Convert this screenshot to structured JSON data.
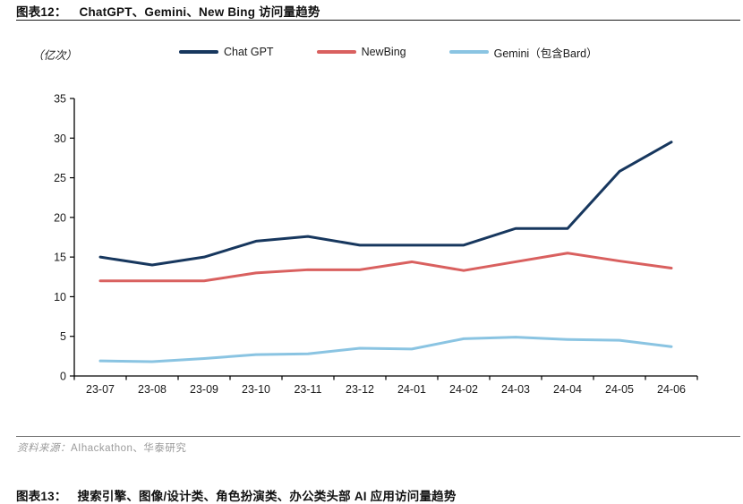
{
  "figure12": {
    "tag": "图表12：",
    "title": "ChatGPT、Gemini、New Bing 访问量趋势"
  },
  "figure13": {
    "tag": "图表13：",
    "title": "搜索引擎、图像/设计类、角色扮演类、办公类头部 AI 应用访问量趋势"
  },
  "source": {
    "label": "资料来源：",
    "text": "AIhackathon、华泰研究"
  },
  "colors": {
    "chatgpt_line": "#17375E",
    "newbing_line": "#D9605F",
    "gemini_line": "#8AC4E2",
    "axis": "#000000",
    "tick_text": "#1a1a1a"
  },
  "chart_data": {
    "type": "line",
    "unit_label": "（亿次）",
    "categories": [
      "23-07",
      "23-08",
      "23-09",
      "23-10",
      "23-11",
      "23-12",
      "24-01",
      "24-02",
      "24-03",
      "24-04",
      "24-05",
      "24-06"
    ],
    "series": [
      {
        "name": "Chat GPT",
        "color": "#17375E",
        "values": [
          15.0,
          14.0,
          15.0,
          17.0,
          17.6,
          16.5,
          16.5,
          16.5,
          18.6,
          18.6,
          25.8,
          29.5
        ]
      },
      {
        "name": "NewBing",
        "color": "#D9605F",
        "values": [
          12.0,
          12.0,
          12.0,
          13.0,
          13.4,
          13.4,
          14.4,
          13.3,
          14.4,
          15.5,
          14.5,
          13.6
        ]
      },
      {
        "name": "Gemini（包含Bard）",
        "color": "#8AC4E2",
        "values": [
          1.9,
          1.8,
          2.2,
          2.7,
          2.8,
          3.5,
          3.4,
          4.7,
          4.9,
          4.6,
          4.5,
          3.7
        ]
      }
    ],
    "ylim": [
      0,
      35
    ],
    "ytick_step": 5,
    "grid": false,
    "legend_position": "top"
  }
}
